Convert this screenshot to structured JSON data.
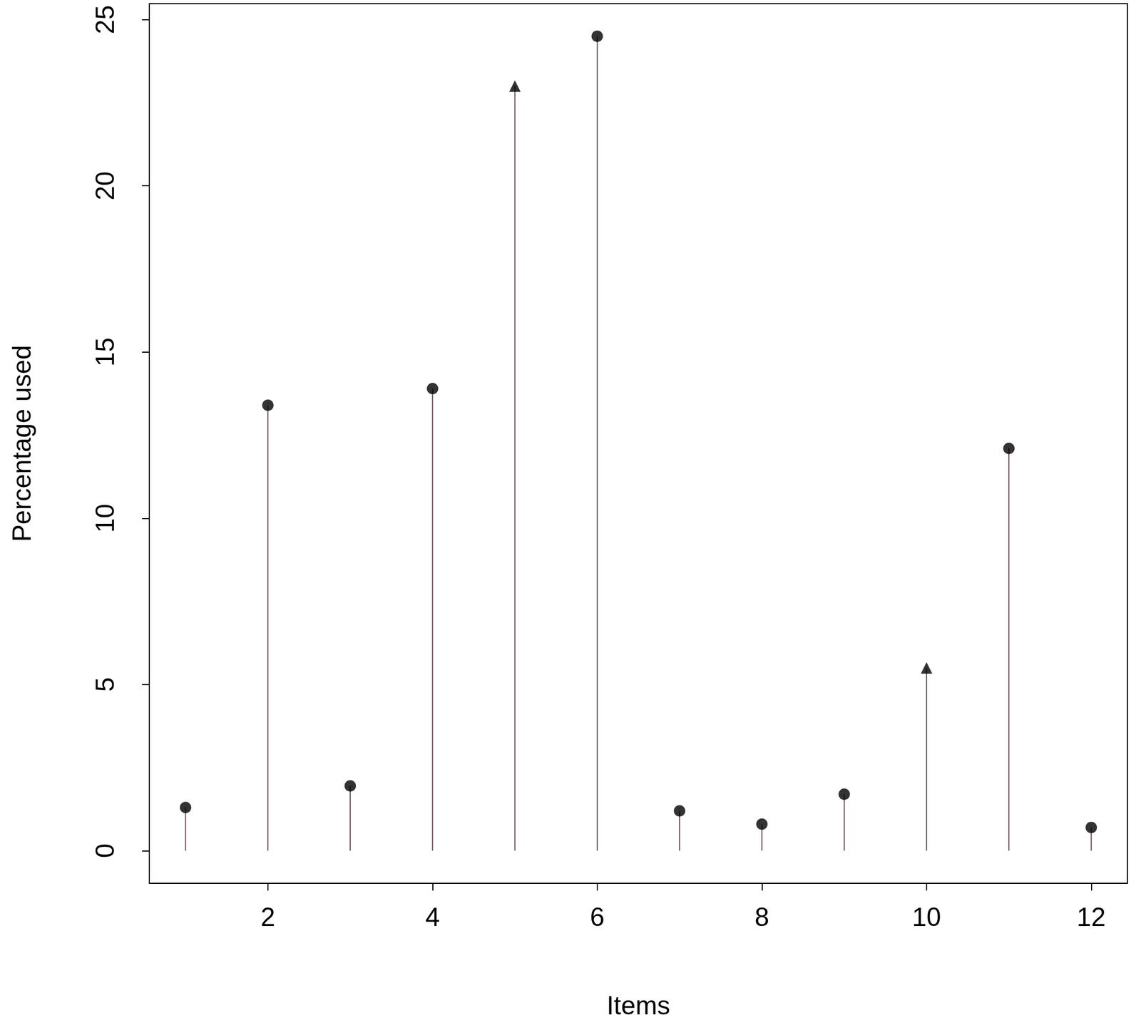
{
  "chart_data": {
    "type": "stem",
    "x_label": "Items",
    "y_label": "Percentage used",
    "series": [
      {
        "marker": "circle",
        "color": "#000000",
        "x": [
          1,
          2,
          3,
          4,
          6,
          7,
          8,
          9,
          11,
          12
        ],
        "values": [
          1.3,
          13.4,
          1.95,
          13.9,
          24.5,
          1.2,
          0.8,
          1.7,
          12.1,
          0.7
        ]
      },
      {
        "marker": "triangle",
        "color": "#000000",
        "x": [
          5,
          10
        ],
        "values": [
          23.0,
          5.5
        ]
      }
    ],
    "xlim": [
      0.56,
      12.44
    ],
    "xticks": [
      2,
      4,
      6,
      8,
      10,
      12
    ],
    "ylim": [
      -0.98,
      25.48
    ],
    "yticks": [
      0,
      5,
      10,
      15,
      20,
      25
    ],
    "grid": false
  }
}
